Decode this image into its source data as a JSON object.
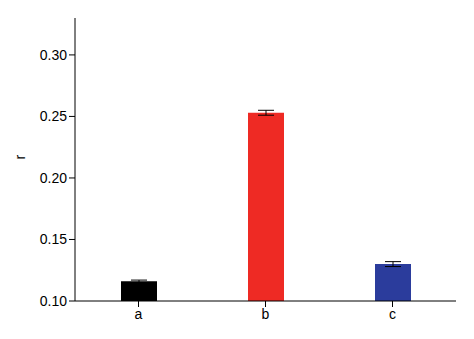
{
  "chart_data": {
    "type": "bar",
    "y_label": "r",
    "categories": [
      "a",
      "b",
      "c"
    ],
    "values": [
      0.116,
      0.253,
      0.13
    ],
    "errors": [
      0.001,
      0.002,
      0.002
    ],
    "colors": [
      "#000000",
      "#ee2a24",
      "#2b3c9c"
    ],
    "ylim": [
      0.1,
      0.33
    ],
    "yticks": [
      {
        "value": 0.1,
        "label": "0.10"
      },
      {
        "value": 0.15,
        "label": "0.15"
      },
      {
        "value": 0.2,
        "label": "0.20"
      },
      {
        "value": 0.25,
        "label": "0.25"
      },
      {
        "value": 0.3,
        "label": "0.30"
      }
    ],
    "grid": false
  }
}
